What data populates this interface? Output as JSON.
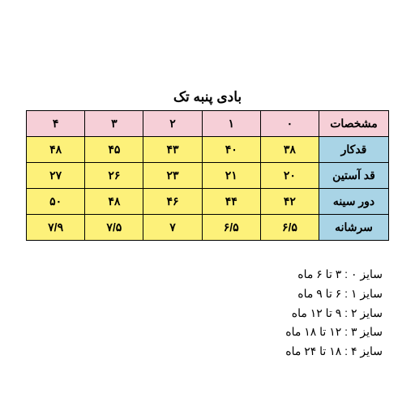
{
  "title": "بادی پنبه تک",
  "colors": {
    "header_bg": "#f6cfd7",
    "label_bg": "#a9d4e6",
    "value_bg": "#fdf17a",
    "border": "#000000",
    "background": "#ffffff"
  },
  "table": {
    "spec_header": "مشخصات",
    "size_headers": [
      "۰",
      "۱",
      "۲",
      "۳",
      "۴"
    ],
    "rows": [
      {
        "label": "قدکار",
        "values": [
          "۳۸",
          "۴۰",
          "۴۳",
          "۴۵",
          "۴۸"
        ]
      },
      {
        "label": "قد آستین",
        "values": [
          "۲۰",
          "۲۱",
          "۲۳",
          "۲۶",
          "۲۷"
        ]
      },
      {
        "label": "دور سینه",
        "values": [
          "۴۲",
          "۴۴",
          "۴۶",
          "۴۸",
          "۵۰"
        ]
      },
      {
        "label": "سرشانه",
        "values": [
          "۶/۵",
          "۶/۵",
          "۷",
          "۷/۵",
          "۷/۹"
        ]
      }
    ]
  },
  "legend": [
    "سایز ۰ : ۳ تا ۶ ماه",
    "سایز ۱ : ۶ تا ۹ ماه",
    "سایز ۲ : ۹ تا ۱۲ ماه",
    "سایز ۳ : ۱۲ تا ۱۸ ماه",
    "سایز ۴ : ۱۸ تا ۲۴ ماه"
  ]
}
